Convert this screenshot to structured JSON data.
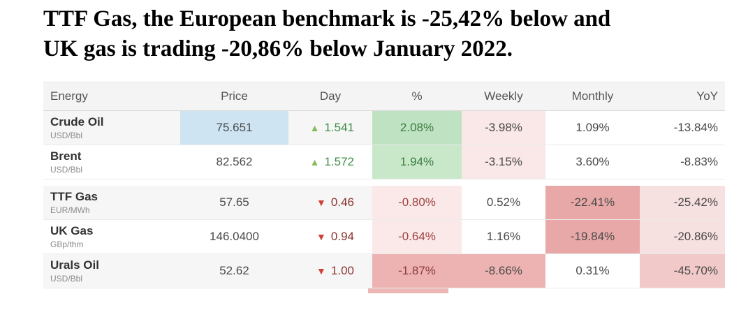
{
  "title": {
    "line1": "TTF Gas, the European benchmark is -25,42% below and",
    "line2": "UK gas is trading -20,86% below January 2022."
  },
  "colors": {
    "price_highlight_blue": "#cee4f2",
    "heatmap_green_strong": "#bfe3c2",
    "heatmap_green_soft": "#c8e8c9",
    "heatmap_pink_soft": "#f9e8e7",
    "heatmap_pink_medium": "#edb2b2",
    "heatmap_red_medium": "#e8a8a8",
    "heatmap_pink_yoy": "#f7e0e0",
    "heatmap_pink_yoy_strong": "#f1c9c9",
    "up_green_text": "#3e8e44",
    "down_red_text": "#8a3431",
    "up_triangle": "#85ba5c",
    "down_triangle": "#ce413a",
    "row_stripe": "#f6f6f6",
    "header_bg": "#f4f4f4"
  },
  "table": {
    "headers": {
      "energy": "Energy",
      "price": "Price",
      "day": "Day",
      "pct": "%",
      "weekly": "Weekly",
      "monthly": "Monthly",
      "yoy": "YoY"
    },
    "rows": [
      {
        "name": "Crude Oil",
        "unit": "USD/Bbl",
        "row_style": "background:#f6f6f6",
        "price": "75.651",
        "price_style": "background:#cee4f2",
        "day_icon": "triangle-up-icon",
        "day_arrow": "▲",
        "day_arrow_style": "color:#85ba5c",
        "day_value": "1.541",
        "day_value_style": "color:#3e8e44",
        "pct": "2.08%",
        "pct_style": "background:#bfe3c2;color:#3c7c40",
        "weekly": "-3.98%",
        "weekly_style": "background:#f9e8e7",
        "monthly": "1.09%",
        "monthly_style": "background:#ffffff",
        "yoy": "-13.84%",
        "yoy_style": "background:#ffffff"
      },
      {
        "name": "Brent",
        "unit": "USD/Bbl",
        "row_style": "",
        "price": "82.562",
        "price_style": "",
        "day_icon": "triangle-up-icon",
        "day_arrow": "▲",
        "day_arrow_style": "color:#85ba5c",
        "day_value": "1.572",
        "day_value_style": "color:#3e8e44",
        "pct": "1.94%",
        "pct_style": "background:#c8e8c9;color:#3c7c40",
        "weekly": "-3.15%",
        "weekly_style": "background:#f9e8e7",
        "monthly": "3.60%",
        "monthly_style": "background:#ffffff",
        "yoy": "-8.83%",
        "yoy_style": "background:#ffffff"
      },
      {
        "name": "TTF Gas",
        "unit": "EUR/MWh",
        "row_style": "background:#f6f6f6",
        "price": "57.65",
        "price_style": "",
        "day_icon": "triangle-down-icon",
        "day_arrow": "▼",
        "day_arrow_style": "color:#ce413a",
        "day_value": "0.46",
        "day_value_style": "color:#8a3431",
        "pct": "-0.80%",
        "pct_style": "background:#fbe9e9;color:#9e4242",
        "weekly": "0.52%",
        "weekly_style": "background:#ffffff",
        "monthly": "-22.41%",
        "monthly_style": "background:#e8a8a8",
        "yoy": "-25.42%",
        "yoy_style": "background:#f7e0e0"
      },
      {
        "name": "UK Gas",
        "unit": "GBp/thm",
        "row_style": "",
        "price": "146.0400",
        "price_style": "",
        "day_icon": "triangle-down-icon",
        "day_arrow": "▼",
        "day_arrow_style": "color:#ce413a",
        "day_value": "0.94",
        "day_value_style": "color:#8a3431",
        "pct": "-0.64%",
        "pct_style": "background:#fbe9e9;color:#9e4242",
        "weekly": "1.16%",
        "weekly_style": "background:#ffffff",
        "monthly": "-19.84%",
        "monthly_style": "background:#e8a8a8",
        "yoy": "-20.86%",
        "yoy_style": "background:#f7e0e0"
      },
      {
        "name": "Urals Oil",
        "unit": "USD/Bbl",
        "row_style": "background:#f6f6f6",
        "price": "52.62",
        "price_style": "",
        "day_icon": "triangle-down-icon",
        "day_arrow": "▼",
        "day_arrow_style": "color:#ce413a",
        "day_value": "1.00",
        "day_value_style": "color:#8a3431",
        "pct": "-1.87%",
        "pct_style": "background:#edb2b2;color:#8f3a3a",
        "weekly": "-8.66%",
        "weekly_style": "background:#edb2b2",
        "monthly": "0.31%",
        "monthly_style": "background:#ffffff",
        "yoy": "-45.70%",
        "yoy_style": "background:#f1c9c9"
      }
    ]
  },
  "artifacts": {
    "partial_cell_style": "background:#eab6b6"
  }
}
